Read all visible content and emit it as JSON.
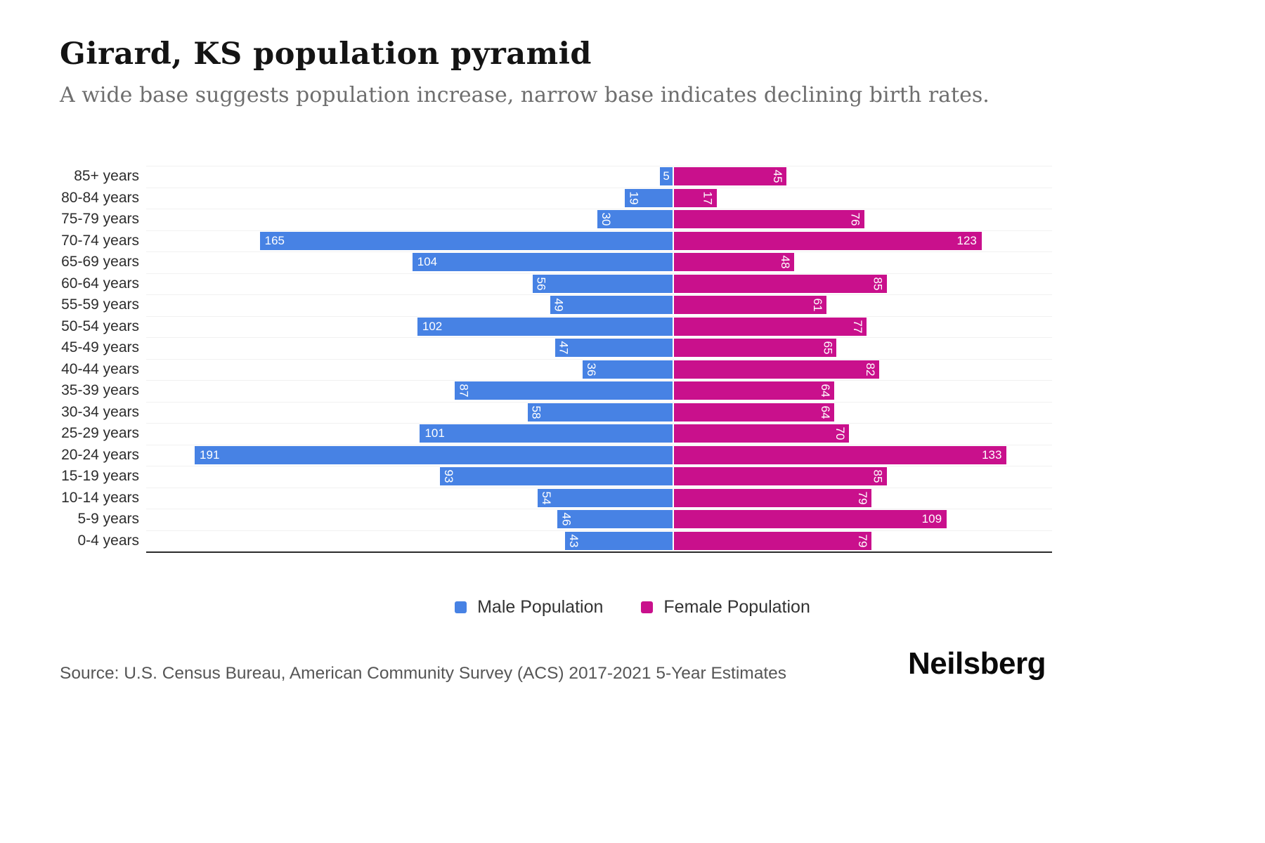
{
  "header": {
    "title": "Girard, KS population pyramid",
    "subtitle": "A wide base suggests population increase, narrow base indicates declining birth rates."
  },
  "chart_data": {
    "type": "bar",
    "variant": "population-pyramid",
    "title": "Girard, KS population pyramid",
    "categories": [
      "85+ years",
      "80-84 years",
      "75-79 years",
      "70-74 years",
      "65-69 years",
      "60-64 years",
      "55-59 years",
      "50-54 years",
      "45-49 years",
      "40-44 years",
      "35-39 years",
      "30-34 years",
      "25-29 years",
      "20-24 years",
      "15-19 years",
      "10-14 years",
      "5-9 years",
      "0-4 years"
    ],
    "series": [
      {
        "name": "Male Population",
        "side": "left",
        "color": "#4782E4",
        "values": [
          5,
          19,
          30,
          165,
          104,
          56,
          49,
          102,
          47,
          36,
          87,
          58,
          101,
          191,
          93,
          54,
          46,
          43
        ]
      },
      {
        "name": "Female Population",
        "side": "right",
        "color": "#C9108C",
        "values": [
          45,
          17,
          76,
          123,
          48,
          85,
          61,
          77,
          65,
          82,
          64,
          64,
          70,
          133,
          85,
          79,
          109,
          79
        ]
      }
    ],
    "value_labels": "white, on bars; two-digit values rotated vertically",
    "axis": {
      "gridlines": true,
      "gridline_color": "#f1f1f1",
      "baseline_color": "#2b2b2b"
    },
    "legend_position": "bottom-center"
  },
  "legend": {
    "male_label": "Male Population",
    "female_label": "Female Population"
  },
  "footer": {
    "source": "Source: U.S. Census Bureau, American Community Survey (ACS) 2017-2021 5-Year Estimates",
    "logo": "Neilsberg"
  }
}
